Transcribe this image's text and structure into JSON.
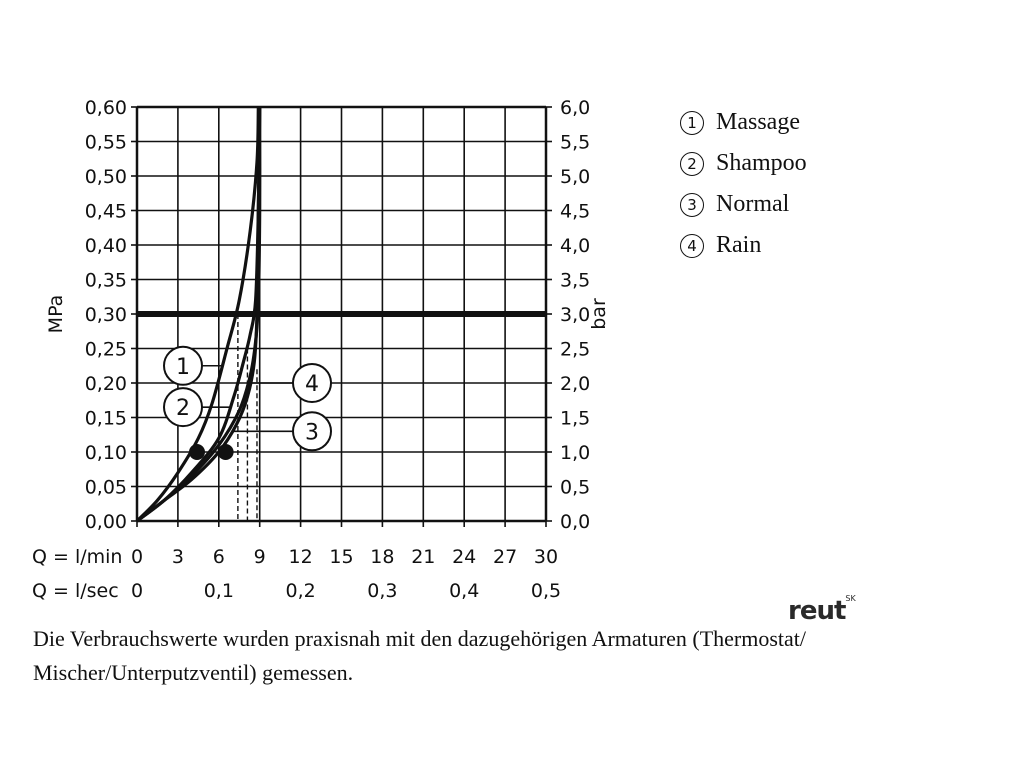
{
  "chart_data": {
    "type": "line",
    "y_left": {
      "label": "MPa",
      "ticks": [
        "0,00",
        "0,05",
        "0,10",
        "0,15",
        "0,20",
        "0,25",
        "0,30",
        "0,35",
        "0,40",
        "0,45",
        "0,50",
        "0,55",
        "0,60"
      ],
      "range": [
        0,
        0.6
      ]
    },
    "y_right": {
      "label": "bar",
      "ticks": [
        "0,0",
        "0,5",
        "1,0",
        "1,5",
        "2,0",
        "2,5",
        "3,0",
        "3,5",
        "4,0",
        "4,5",
        "5,0",
        "5,5",
        "6,0"
      ],
      "range": [
        0,
        6.0
      ]
    },
    "x": {
      "row1_label": "Q = l/min",
      "row1_ticks": [
        "0",
        "3",
        "6",
        "9",
        "12",
        "15",
        "18",
        "21",
        "24",
        "27",
        "30"
      ],
      "row2_label": "Q = l/sec",
      "row2_ticks": [
        {
          "value": 0,
          "label": "0"
        },
        {
          "value": 6,
          "label": "0,1"
        },
        {
          "value": 12,
          "label": "0,2"
        },
        {
          "value": 18,
          "label": "0,3"
        },
        {
          "value": 24,
          "label": "0,4"
        },
        {
          "value": 30,
          "label": "0,5"
        }
      ],
      "range": [
        0,
        30
      ]
    },
    "grid": true,
    "reference_line": {
      "y": 0.3
    },
    "series": [
      {
        "name": "1",
        "points": [
          [
            0,
            0
          ],
          [
            1.5,
            0.03
          ],
          [
            3,
            0.07
          ],
          [
            4.5,
            0.12
          ],
          [
            5.5,
            0.17
          ],
          [
            6.6,
            0.25
          ],
          [
            7.5,
            0.32
          ],
          [
            8.3,
            0.42
          ],
          [
            8.8,
            0.52
          ],
          [
            8.9,
            0.6
          ]
        ]
      },
      {
        "name": "2",
        "points": [
          [
            0,
            0
          ],
          [
            2,
            0.03
          ],
          [
            4,
            0.07
          ],
          [
            6,
            0.12
          ],
          [
            7.1,
            0.18
          ],
          [
            7.8,
            0.23
          ],
          [
            8.3,
            0.27
          ],
          [
            8.7,
            0.32
          ],
          [
            8.9,
            0.45
          ],
          [
            9.0,
            0.6
          ]
        ]
      },
      {
        "name": "3",
        "points": [
          [
            0,
            0
          ],
          [
            2,
            0.03
          ],
          [
            4,
            0.06
          ],
          [
            6,
            0.1
          ],
          [
            7.3,
            0.14
          ],
          [
            8.1,
            0.18
          ],
          [
            8.6,
            0.23
          ],
          [
            8.8,
            0.3
          ],
          [
            8.9,
            0.45
          ],
          [
            9.0,
            0.6
          ]
        ]
      },
      {
        "name": "4",
        "points": [
          [
            0,
            0
          ],
          [
            2,
            0.03
          ],
          [
            4,
            0.065
          ],
          [
            6,
            0.11
          ],
          [
            7.5,
            0.16
          ],
          [
            8.3,
            0.21
          ],
          [
            8.7,
            0.26
          ],
          [
            8.9,
            0.32
          ],
          [
            9.0,
            0.45
          ],
          [
            9.0,
            0.6
          ]
        ]
      }
    ],
    "markers": [
      [
        4.4,
        0.1
      ],
      [
        6.5,
        0.1
      ]
    ],
    "dashed_guides": [
      {
        "x": 7.4,
        "y_top": 0.3
      },
      {
        "x": 8.1,
        "y_top": 0.25
      },
      {
        "x": 8.8,
        "y_top": 0.22
      }
    ],
    "callouts": [
      {
        "label": "1",
        "series": "1",
        "side": "left",
        "y": 0.225
      },
      {
        "label": "2",
        "series": "2",
        "side": "left",
        "y": 0.165
      },
      {
        "label": "4",
        "series": "4",
        "side": "right",
        "y": 0.2
      },
      {
        "label": "3",
        "series": "3",
        "side": "right",
        "y": 0.13
      }
    ]
  },
  "legend": [
    {
      "num": "1",
      "label": "Massage"
    },
    {
      "num": "2",
      "label": "Shampoo"
    },
    {
      "num": "3",
      "label": "Normal"
    },
    {
      "num": "4",
      "label": "Rain"
    }
  ],
  "note": "Die Verbrauchswerte wurden praxisnah mit den dazugehörigen Armaturen (Thermostat/ Mischer/Unterputzventil) gemessen.",
  "logo": {
    "text": "reut",
    "sup": "SK"
  }
}
